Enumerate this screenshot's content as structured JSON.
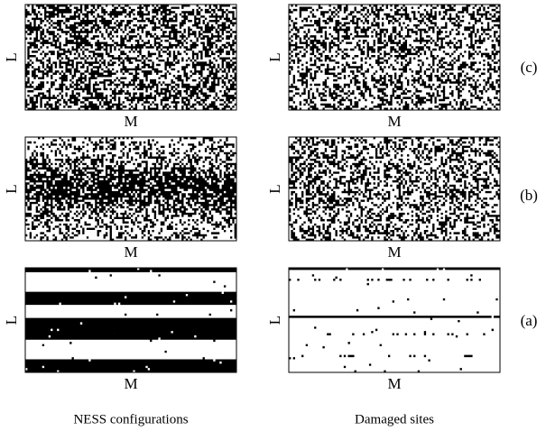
{
  "rows": [
    {
      "label": "(c)"
    },
    {
      "label": "(b)"
    },
    {
      "label": "(a)"
    }
  ],
  "columns": [
    {
      "title": "NESS configurations",
      "x_label": "M",
      "y_label": "L"
    },
    {
      "title": "Damaged sites",
      "x_label": "M",
      "y_label": "L"
    }
  ]
}
